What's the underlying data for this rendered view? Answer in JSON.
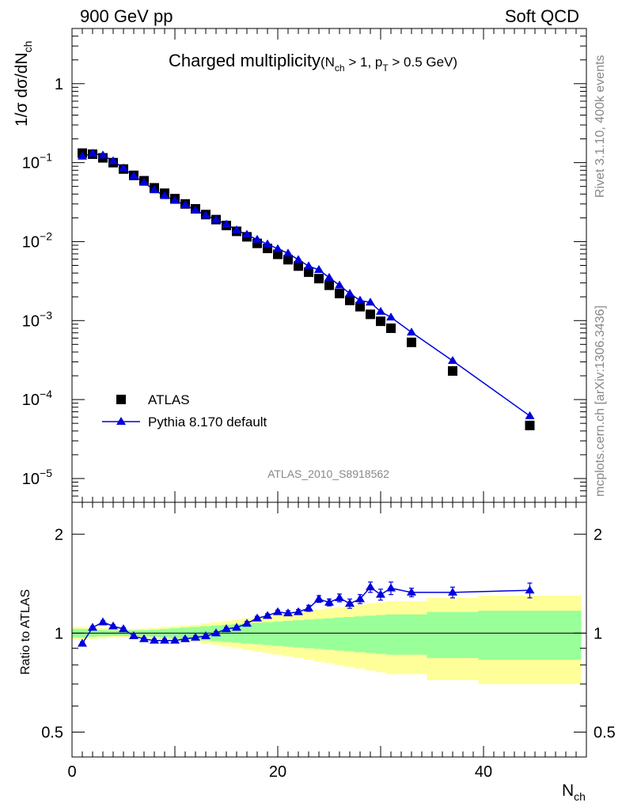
{
  "header": {
    "left": "900 GeV pp",
    "right": "Soft QCD"
  },
  "side": {
    "rivet": "Rivet 3.1.10,  400k events",
    "mcplots": "mcplots.cern.ch [arXiv:1306.3436]"
  },
  "colors": {
    "mc": "#0000dd",
    "data": "#000000",
    "band_inner": "#99ff99",
    "band_outer": "#ffff99"
  },
  "chart_data": [
    {
      "type": "scatter",
      "title_main": "Charged multiplicity",
      "title_sub_pre": "(N",
      "title_sub_sub1": "ch",
      "title_sub_mid": " > 1, p",
      "title_sub_sub2": "T",
      "title_sub_post": " > 0.5 GeV)",
      "ylabel": "1/σ dσ/dN",
      "ylabel_sub": "ch",
      "yscale": "log",
      "ylim": [
        5e-06,
        5
      ],
      "xlim": [
        0,
        50
      ],
      "yticks": [
        {
          "value": 1e-05,
          "base": "10",
          "exp": "−5"
        },
        {
          "value": 0.0001,
          "base": "10",
          "exp": "−4"
        },
        {
          "value": 0.001,
          "base": "10",
          "exp": "−3"
        },
        {
          "value": 0.01,
          "base": "10",
          "exp": "−2"
        },
        {
          "value": 0.1,
          "base": "10",
          "exp": "−1"
        },
        {
          "value": 1,
          "base": "1",
          "exp": ""
        }
      ],
      "watermark": "ATLAS_2010_S8918562",
      "legend": {
        "position": "bottom-left",
        "data_label": "ATLAS",
        "mc_label": "Pythia 8.170 default"
      },
      "series": [
        {
          "name": "ATLAS",
          "marker": "square",
          "x": [
            1,
            2,
            3,
            4,
            5,
            6,
            7,
            8,
            9,
            10,
            11,
            12,
            13,
            14,
            15,
            16,
            17,
            18,
            19,
            20,
            21,
            22,
            23,
            24,
            25,
            26,
            27,
            28,
            29,
            30,
            31,
            33,
            37,
            44.5
          ],
          "y": [
            0.132,
            0.128,
            0.115,
            0.1,
            0.083,
            0.069,
            0.059,
            0.048,
            0.041,
            0.035,
            0.03,
            0.026,
            0.022,
            0.019,
            0.016,
            0.0135,
            0.0115,
            0.0095,
            0.0082,
            0.0069,
            0.0059,
            0.0049,
            0.0041,
            0.0034,
            0.0028,
            0.0022,
            0.0018,
            0.0015,
            0.0012,
            0.00098,
            0.0008,
            0.00053,
            0.00023,
            4.7e-05
          ]
        },
        {
          "name": "Pythia 8.170 default",
          "marker": "triangle",
          "x": [
            1,
            2,
            3,
            4,
            5,
            6,
            7,
            8,
            9,
            10,
            11,
            12,
            13,
            14,
            15,
            16,
            17,
            18,
            19,
            20,
            21,
            22,
            23,
            24,
            25,
            26,
            27,
            28,
            29,
            30,
            31,
            33,
            37,
            44.5
          ],
          "y": [
            0.12,
            0.131,
            0.124,
            0.105,
            0.085,
            0.068,
            0.056,
            0.045,
            0.038,
            0.033,
            0.029,
            0.025,
            0.0215,
            0.019,
            0.0165,
            0.014,
            0.0123,
            0.0106,
            0.0093,
            0.0081,
            0.0071,
            0.0059,
            0.0049,
            0.0044,
            0.0035,
            0.0028,
            0.0022,
            0.0018,
            0.0017,
            0.0013,
            0.0011,
            0.00071,
            0.00031,
            6.2e-05
          ]
        }
      ]
    },
    {
      "type": "line",
      "ylabel": "Ratio to ATLAS",
      "xlabel": "N",
      "xlabel_sub": "ch",
      "yscale": "log",
      "ylim": [
        0.42,
        2.5
      ],
      "xlim": [
        0,
        50
      ],
      "xticks": [
        0,
        20,
        40
      ],
      "yticks": [
        0.5,
        1,
        2
      ],
      "ytick_labels": [
        "0.5",
        "1",
        "2"
      ],
      "bands": {
        "edges": [
          0,
          1.5,
          2.5,
          3.5,
          4.5,
          5.5,
          6.5,
          7.5,
          8.5,
          9.5,
          10.5,
          11.5,
          12.5,
          13.5,
          14.5,
          15.5,
          16.5,
          17.5,
          18.5,
          19.5,
          20.5,
          21.5,
          22.5,
          23.5,
          24.5,
          25.5,
          26.5,
          27.5,
          28.5,
          29.5,
          30.5,
          34.5,
          39.5,
          49.5
        ],
        "inner": [
          0.03,
          0.025,
          0.022,
          0.02,
          0.02,
          0.02,
          0.022,
          0.025,
          0.03,
          0.035,
          0.04,
          0.045,
          0.05,
          0.055,
          0.06,
          0.065,
          0.07,
          0.075,
          0.08,
          0.085,
          0.09,
          0.095,
          0.1,
          0.105,
          0.11,
          0.115,
          0.12,
          0.125,
          0.13,
          0.135,
          0.14,
          0.16,
          0.17,
          0.18
        ],
        "outer": [
          0.045,
          0.04,
          0.035,
          0.03,
          0.03,
          0.03,
          0.033,
          0.038,
          0.045,
          0.05,
          0.055,
          0.06,
          0.07,
          0.08,
          0.09,
          0.1,
          0.11,
          0.12,
          0.13,
          0.14,
          0.15,
          0.16,
          0.17,
          0.18,
          0.19,
          0.2,
          0.21,
          0.22,
          0.23,
          0.24,
          0.25,
          0.28,
          0.3,
          0.3
        ]
      },
      "series": [
        {
          "name": "Pythia 8.170 default / ATLAS",
          "x": [
            1,
            2,
            3,
            4,
            5,
            6,
            7,
            8,
            9,
            10,
            11,
            12,
            13,
            14,
            15,
            16,
            17,
            18,
            19,
            20,
            21,
            22,
            23,
            24,
            25,
            26,
            27,
            28,
            29,
            30,
            31,
            33,
            37,
            44.5
          ],
          "y": [
            0.93,
            1.04,
            1.08,
            1.05,
            1.03,
            0.98,
            0.96,
            0.95,
            0.95,
            0.95,
            0.96,
            0.97,
            0.98,
            1.0,
            1.03,
            1.04,
            1.07,
            1.11,
            1.13,
            1.16,
            1.15,
            1.16,
            1.19,
            1.27,
            1.24,
            1.28,
            1.23,
            1.27,
            1.38,
            1.31,
            1.37,
            1.33,
            1.33,
            1.35
          ],
          "err": [
            0.01,
            0.01,
            0.01,
            0.01,
            0.01,
            0.01,
            0.01,
            0.01,
            0.01,
            0.01,
            0.01,
            0.01,
            0.01,
            0.01,
            0.01,
            0.01,
            0.015,
            0.015,
            0.015,
            0.015,
            0.02,
            0.02,
            0.025,
            0.03,
            0.03,
            0.035,
            0.04,
            0.04,
            0.05,
            0.05,
            0.06,
            0.04,
            0.05,
            0.07
          ]
        }
      ]
    }
  ]
}
